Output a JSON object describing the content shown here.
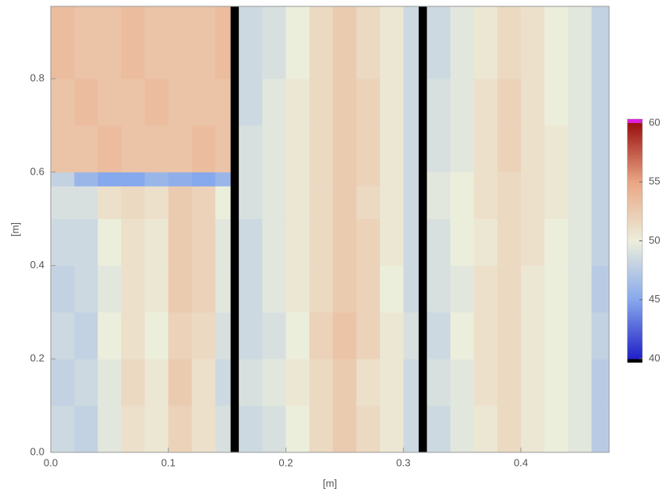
{
  "chart_data": {
    "type": "heatmap",
    "xlabel": "[m]",
    "ylabel": "[m]",
    "xlim": [
      0,
      0.475
    ],
    "ylim": [
      0,
      0.955
    ],
    "xticks": [
      {
        "value": 0,
        "label": "0.0"
      },
      0.1,
      0.2,
      0.3,
      0.4
    ],
    "yticks": [
      {
        "value": 0,
        "label": "0.0"
      },
      0.2,
      0.4,
      0.6,
      0.8
    ],
    "x_edges": [
      0,
      0.02,
      0.04,
      0.06,
      0.08,
      0.1,
      0.12,
      0.14,
      0.153,
      0.16,
      0.18,
      0.2,
      0.22,
      0.24,
      0.26,
      0.28,
      0.3,
      0.313,
      0.32,
      0.34,
      0.36,
      0.38,
      0.4,
      0.42,
      0.44,
      0.46,
      0.475
    ],
    "y_edges": [
      0,
      0.1,
      0.2,
      0.3,
      0.4,
      0.5,
      0.57,
      0.6,
      0.7,
      0.8,
      0.955
    ],
    "z": [
      [
        48.5,
        48,
        49.5,
        51,
        50.5,
        52,
        51,
        49,
        30,
        48.5,
        49,
        50,
        51.5,
        52.5,
        51.5,
        50.5,
        48.5,
        30,
        48.5,
        49.5,
        50.5,
        51.5,
        50.5,
        50,
        49.5,
        47.5
      ],
      [
        48,
        48.5,
        49.5,
        51.5,
        50.5,
        52.5,
        51,
        48.5,
        30,
        49,
        49.5,
        50.5,
        51.5,
        52.5,
        51,
        50.5,
        48.5,
        30,
        49,
        49.5,
        51,
        51.5,
        50.5,
        50,
        49.5,
        47.5
      ],
      [
        48.5,
        48,
        50,
        51,
        50,
        52,
        51.5,
        49,
        30,
        48.5,
        49,
        50,
        52,
        53,
        52,
        50.5,
        49,
        30,
        48.5,
        50,
        51,
        51.5,
        50.5,
        50,
        49.5,
        48
      ],
      [
        48,
        48.5,
        49.5,
        51,
        50.5,
        52.5,
        52,
        49.5,
        30,
        48.5,
        49.5,
        50.5,
        51.5,
        52.5,
        52,
        50,
        48.5,
        30,
        49,
        49.5,
        51,
        51.5,
        50.5,
        50,
        49.5,
        47.5
      ],
      [
        48.5,
        48.5,
        50,
        51,
        50.5,
        52.5,
        52,
        49.5,
        30,
        48.5,
        49.5,
        50.5,
        51.5,
        52.5,
        52,
        50.5,
        48.5,
        30,
        49,
        50,
        50.5,
        51.5,
        51,
        50,
        49.5,
        48
      ],
      [
        49,
        49,
        51,
        51.5,
        51,
        52.5,
        52,
        50,
        30,
        49,
        49.5,
        50.5,
        51.5,
        52.5,
        51.5,
        50.5,
        48.5,
        30,
        49.5,
        50,
        51,
        51.5,
        51,
        50.5,
        49.5,
        48
      ],
      [
        48,
        46,
        45,
        45,
        46,
        45.5,
        45,
        46,
        30,
        49,
        49.5,
        50.5,
        51.5,
        52.5,
        52,
        50.5,
        48.5,
        30,
        49.5,
        50,
        51,
        51.5,
        51,
        50.5,
        49.5,
        48
      ],
      [
        53,
        53,
        53.5,
        53,
        53,
        53,
        53.5,
        53,
        30,
        49,
        49.5,
        50.5,
        51.5,
        52.5,
        52,
        50.5,
        48.5,
        30,
        49,
        49.5,
        51,
        52,
        51,
        50.5,
        49.5,
        48
      ],
      [
        53,
        53.5,
        53,
        53,
        53.5,
        53,
        53,
        53,
        30,
        48.5,
        49.5,
        50.5,
        51.5,
        52.5,
        52,
        50.5,
        48.5,
        30,
        49,
        49.5,
        51,
        52,
        51,
        50,
        49.5,
        48
      ],
      [
        53.5,
        53,
        53,
        53.5,
        53,
        53,
        53,
        53.5,
        30,
        48.5,
        49,
        50,
        51.5,
        52.5,
        51.5,
        50.5,
        48.5,
        30,
        48.5,
        49.5,
        50.5,
        51.5,
        51,
        50,
        49.5,
        48
      ]
    ],
    "zlim": [
      40,
      60
    ],
    "zticks": [
      40,
      45,
      50,
      55,
      60
    ],
    "colors": [
      "#2020c8",
      "#86a8ec",
      "#eceedc",
      "#eaa784",
      "#9a1010"
    ],
    "under_color": "#000000",
    "over_color": "#e020e0"
  }
}
